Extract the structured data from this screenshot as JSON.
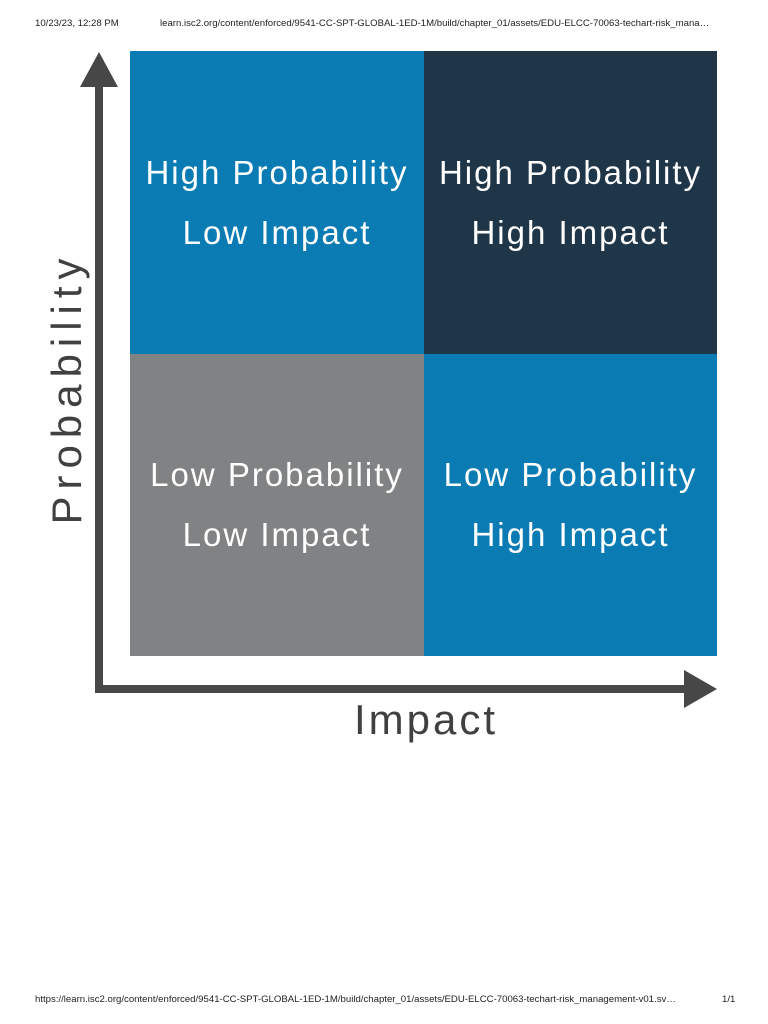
{
  "browser_header": {
    "datetime": "10/23/23, 12:28 PM",
    "url": "learn.isc2.org/content/enforced/9541-CC-SPT-GLOBAL-1ED-1M/build/chapter_01/assets/EDU-ELCC-70063-techart-risk_mana…"
  },
  "diagram": {
    "y_axis_label": "Probability",
    "x_axis_label": "Impact",
    "axis_color": "#474747",
    "quadrants": [
      {
        "line1": "High Probability",
        "line2": "Low Impact",
        "color": "#0b7bb3"
      },
      {
        "line1": "High Probability",
        "line2": "High Impact",
        "color": "#1f3548"
      },
      {
        "line1": "Low Probability",
        "line2": "Low Impact",
        "color": "#818283"
      },
      {
        "line1": "Low Probability",
        "line2": "High Impact",
        "color": "#0b7bb3"
      }
    ]
  },
  "browser_footer": {
    "url": "https://learn.isc2.org/content/enforced/9541-CC-SPT-GLOBAL-1ED-1M/build/chapter_01/assets/EDU-ELCC-70063-techart-risk_management-v01.sv…",
    "page": "1/1"
  }
}
